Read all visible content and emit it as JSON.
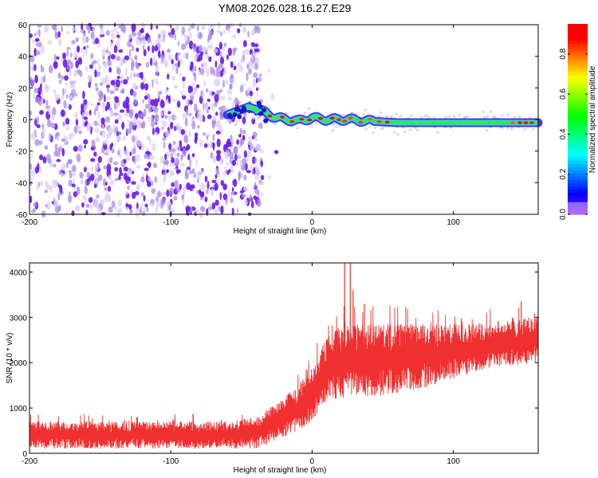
{
  "title": "YM08.2026.028.16.27.E29",
  "chart_data": [
    {
      "type": "heatmap",
      "xlabel": "Height of straight line (km)",
      "ylabel": "Frequency (Hz)",
      "xlim": [
        -200,
        160
      ],
      "ylim": [
        -60,
        60
      ],
      "xticks": [
        -200,
        -100,
        0,
        100
      ],
      "yticks": [
        60,
        40,
        20,
        0,
        -20,
        -40,
        -60
      ],
      "ytick_labels": [
        "60",
        "40",
        "20",
        "0",
        "-20",
        "-40",
        "-60"
      ],
      "ridge_frequency_hz": [
        {
          "x": -60,
          "y": 3
        },
        {
          "x": -45,
          "y": 8
        },
        {
          "x": -35,
          "y": 5
        },
        {
          "x": -25,
          "y": 1
        },
        {
          "x": -10,
          "y": -1
        },
        {
          "x": 0,
          "y": 1
        },
        {
          "x": 10,
          "y": 0
        },
        {
          "x": 25,
          "y": 0
        },
        {
          "x": 40,
          "y": -1
        },
        {
          "x": 60,
          "y": -2
        },
        {
          "x": 100,
          "y": -2
        },
        {
          "x": 160,
          "y": -2
        }
      ],
      "colorbar": {
        "label": "Normalized spectral amplitude",
        "range": [
          0,
          0.95
        ],
        "ticks": [
          0.0,
          0.2,
          0.4,
          0.6,
          0.8
        ],
        "tick_labels": [
          "0.0",
          "0.2",
          "0.4",
          "0.6",
          "0.8"
        ]
      }
    },
    {
      "type": "line",
      "xlabel": "Height of straight line (km)",
      "ylabel": "SNR (10 * v/v)",
      "xlim": [
        -200,
        160
      ],
      "ylim": [
        0,
        4200
      ],
      "xticks": [
        -200,
        -100,
        0,
        100
      ],
      "yticks": [
        0,
        1000,
        2000,
        3000,
        4000
      ],
      "color": "#f03030",
      "series": [
        {
          "name": "SNR",
          "x": [
            -200,
            -150,
            -100,
            -60,
            -40,
            -25,
            -10,
            0,
            10,
            20,
            30,
            50,
            80,
            100,
            130,
            160
          ],
          "y": [
            400,
            400,
            400,
            400,
            450,
            700,
            1000,
            1300,
            1850,
            2000,
            2050,
            2050,
            2150,
            2250,
            2400,
            2500
          ],
          "band": [
            300,
            300,
            300,
            300,
            350,
            400,
            500,
            600,
            700,
            800,
            800,
            800,
            700,
            600,
            500,
            500
          ]
        }
      ],
      "peaks": [
        {
          "x": 23,
          "y": 4200
        },
        {
          "x": 27,
          "y": 4200
        },
        {
          "x": 29,
          "y": 3600
        },
        {
          "x": 37,
          "y": 3300
        },
        {
          "x": 148,
          "y": 3350
        }
      ]
    }
  ]
}
